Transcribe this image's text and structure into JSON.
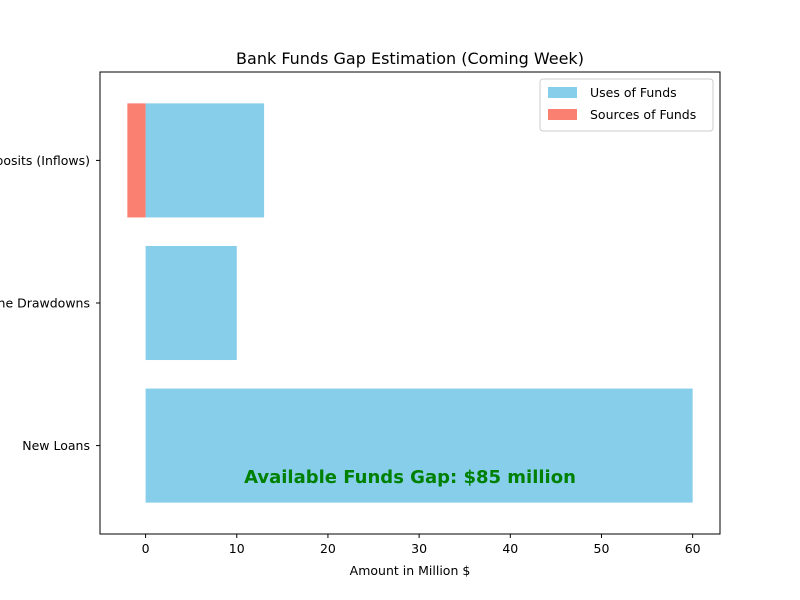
{
  "chart_data": {
    "type": "bar",
    "orientation": "horizontal",
    "title": "Bank Funds Gap Estimation (Coming Week)",
    "xlabel": "Amount in Million $",
    "ylabel": "",
    "xlim": [
      -5,
      63
    ],
    "xticks": [
      0,
      10,
      20,
      30,
      40,
      50,
      60
    ],
    "grid": false,
    "legend_position": "top-right",
    "categories": [
      "New Loans",
      "Line Drawdowns",
      "Deposits (Inflows)"
    ],
    "series": [
      {
        "name": "Uses of Funds",
        "color": "#87ceeb",
        "values": [
          60,
          10,
          13
        ]
      },
      {
        "name": "Sources of Funds",
        "color": "#fa8072",
        "values": [
          0,
          0,
          -2
        ]
      }
    ],
    "annotation": {
      "text": "Available Funds Gap: $85 million",
      "color": "#008000",
      "x": 29,
      "category": "New Loans",
      "offset": -0.22
    }
  }
}
